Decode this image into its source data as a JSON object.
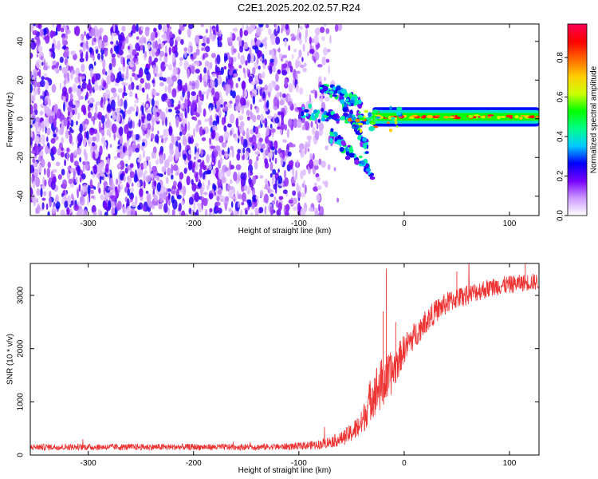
{
  "figure_title": "C2E1.2025.202.02.57.R24",
  "chart_data": [
    {
      "type": "heatmap",
      "xlabel": "Height of straight line (km)",
      "ylabel": "Frequency (Hz)",
      "xlim": [
        -355,
        128
      ],
      "ylim": [
        -50,
        49
      ],
      "x_ticks": [
        -300,
        -200,
        -100,
        0,
        100
      ],
      "y_ticks": [
        -40,
        -20,
        0,
        20,
        40
      ],
      "colorbar": {
        "label": "Normalized spectral amplitude",
        "range": [
          0,
          0.97
        ],
        "ticks": [
          0.0,
          0.2,
          0.4,
          0.6,
          0.8
        ],
        "tick_labels": [
          "0.0",
          "0.2",
          "0.4",
          "0.6",
          "0.8"
        ],
        "colormap": [
          "#ffffff",
          "#cc99ff",
          "#7700ff",
          "#0000ff",
          "#00ccff",
          "#00ff88",
          "#00ff00",
          "#ccff00",
          "#ffcc00",
          "#ff6600",
          "#ff0000",
          "#ff0055"
        ]
      },
      "features": {
        "noise_region_x": [
          -355,
          -60
        ],
        "main_band": {
          "x_start": -30,
          "x_end": 128,
          "center_freq": 1
        },
        "branches": [
          {
            "x": [
              -100,
              -30
            ],
            "freq": [
              3,
              -1
            ]
          },
          {
            "x": [
              -80,
              -40
            ],
            "freq": [
              17,
              8
            ]
          },
          {
            "x": [
              -70,
              -30
            ],
            "freq": [
              -8,
              -28
            ]
          },
          {
            "x": [
              -60,
              -35
            ],
            "freq": [
              10,
              -15
            ]
          }
        ]
      }
    },
    {
      "type": "line",
      "xlabel": "Height of straight line (km)",
      "ylabel": "SNR (10 * v/v)",
      "xlim": [
        -355,
        128
      ],
      "ylim": [
        0,
        3600
      ],
      "x_ticks": [
        -300,
        -200,
        -100,
        0,
        100
      ],
      "y_ticks": [
        0,
        1000,
        2000,
        3000
      ],
      "series_color": "#ee3333",
      "x": [
        -355,
        -300,
        -250,
        -200,
        -150,
        -120,
        -100,
        -80,
        -60,
        -50,
        -40,
        -35,
        -30,
        -25,
        -20,
        -15,
        -10,
        -5,
        0,
        10,
        20,
        30,
        40,
        50,
        60,
        70,
        80,
        90,
        100,
        110,
        120,
        128
      ],
      "values": [
        150,
        150,
        150,
        150,
        150,
        155,
        165,
        200,
        300,
        420,
        600,
        900,
        1150,
        1250,
        1350,
        1450,
        1600,
        1800,
        2000,
        2250,
        2500,
        2700,
        2850,
        2950,
        3000,
        3080,
        3130,
        3180,
        3200,
        3230,
        3250,
        3260
      ],
      "noise_amplitude": [
        60,
        60,
        60,
        60,
        60,
        60,
        70,
        90,
        130,
        180,
        250,
        350,
        450,
        500,
        500,
        450,
        380,
        320,
        280,
        250,
        230,
        220,
        210,
        200,
        190,
        185,
        180,
        175,
        170,
        165,
        160,
        160
      ]
    }
  ]
}
